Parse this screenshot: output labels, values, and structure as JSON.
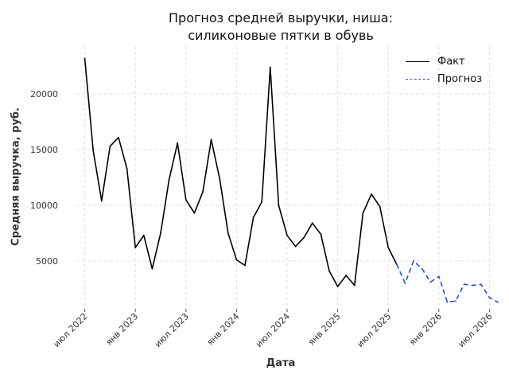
{
  "chart_data": {
    "type": "line",
    "title_lines": [
      "Прогноз средней выручки, ниша:",
      "силиконовые пятки в обувь"
    ],
    "xlabel": "Дата",
    "ylabel": "Средняя выручка, руб.",
    "x_ticks": [
      "2022-07",
      "2023-01",
      "2023-07",
      "2024-01",
      "2024-07",
      "2025-01",
      "2025-07",
      "2026-01",
      "2026-07"
    ],
    "x_tick_labels": [
      "июл 2022",
      "янв 2023",
      "июл 2023",
      "янв 2024",
      "июл 2024",
      "янв 2025",
      "июл 2025",
      "янв 2026",
      "июл 2026"
    ],
    "y_ticks": [
      5000,
      10000,
      15000,
      20000
    ],
    "y_tick_labels": [
      "5000",
      "10000",
      "15000",
      "20000"
    ],
    "ylim": [
      700,
      24300
    ],
    "xlim": [
      "2022-06",
      "2026-08"
    ],
    "grid": true,
    "legend_position": "top-right",
    "colors": {
      "fact": "#000000",
      "forecast": "#1f4fd8",
      "grid": "#e2e2e2"
    },
    "series": [
      {
        "name": "Факт",
        "style": "solid",
        "x": [
          "2022-07",
          "2022-08",
          "2022-09",
          "2022-10",
          "2022-11",
          "2022-12",
          "2023-01",
          "2023-02",
          "2023-03",
          "2023-04",
          "2023-05",
          "2023-06",
          "2023-07",
          "2023-08",
          "2023-09",
          "2023-10",
          "2023-11",
          "2023-12",
          "2024-01",
          "2024-02",
          "2024-03",
          "2024-04",
          "2024-05",
          "2024-06",
          "2024-07",
          "2024-08",
          "2024-09",
          "2024-10",
          "2024-11",
          "2024-12",
          "2025-01",
          "2025-02",
          "2025-03",
          "2025-04",
          "2025-05",
          "2025-06",
          "2025-07",
          "2025-08"
        ],
        "values": [
          23200,
          14900,
          10400,
          15300,
          16100,
          13300,
          6200,
          7300,
          4300,
          7500,
          12300,
          15600,
          10500,
          9300,
          11200,
          15900,
          12400,
          7500,
          5100,
          4600,
          8900,
          10300,
          22400,
          10000,
          7300,
          6300,
          7100,
          8400,
          7400,
          4100,
          2700,
          3700,
          2800,
          9300,
          11000,
          9900,
          6200,
          4700
        ]
      },
      {
        "name": "Прогноз",
        "style": "dashed",
        "x": [
          "2025-08",
          "2025-09",
          "2025-10",
          "2025-11",
          "2025-12",
          "2026-01",
          "2026-02",
          "2026-03",
          "2026-04",
          "2026-05",
          "2026-06",
          "2026-07",
          "2026-08"
        ],
        "values": [
          4700,
          3000,
          5000,
          4300,
          3100,
          3600,
          1300,
          1400,
          2900,
          2800,
          2900,
          1700,
          1300
        ]
      }
    ]
  }
}
